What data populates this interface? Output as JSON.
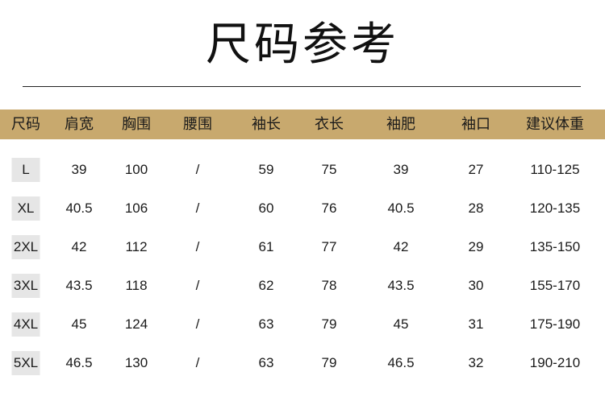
{
  "title": "尺码参考",
  "colors": {
    "header_band": "#c8a96e",
    "size_cell": "#e6e6e6"
  },
  "table": {
    "headers": [
      "尺码",
      "肩宽",
      "胸围",
      "腰围",
      "袖长",
      "衣长",
      "袖肥",
      "袖口",
      "建议体重"
    ],
    "rows": [
      [
        "L",
        "39",
        "100",
        "/",
        "59",
        "75",
        "39",
        "27",
        "110-125"
      ],
      [
        "XL",
        "40.5",
        "106",
        "/",
        "60",
        "76",
        "40.5",
        "28",
        "120-135"
      ],
      [
        "2XL",
        "42",
        "112",
        "/",
        "61",
        "77",
        "42",
        "29",
        "135-150"
      ],
      [
        "3XL",
        "43.5",
        "118",
        "/",
        "62",
        "78",
        "43.5",
        "30",
        "155-170"
      ],
      [
        "4XL",
        "45",
        "124",
        "/",
        "63",
        "79",
        "45",
        "31",
        "175-190"
      ],
      [
        "5XL",
        "46.5",
        "130",
        "/",
        "63",
        "79",
        "46.5",
        "32",
        "190-210"
      ]
    ]
  }
}
